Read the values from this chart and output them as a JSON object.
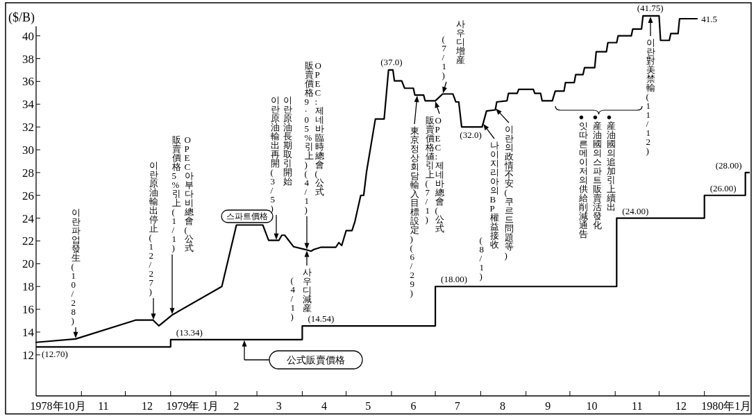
{
  "chart_data": {
    "type": "line",
    "ylabel": "($/B)",
    "xlim": [
      "1978-10-01",
      "1980-02-01"
    ],
    "xticks": [
      {
        "value": "1978-11-01",
        "label": null
      },
      {
        "value": "1978-12-01",
        "label": null
      },
      {
        "value": "1979-01-01",
        "label": null
      },
      {
        "value": "1979-02-01",
        "label": null
      },
      {
        "value": "1979-03-01",
        "label": null
      },
      {
        "value": "1979-04-01",
        "label": null
      },
      {
        "value": "1979-05-01",
        "label": null
      },
      {
        "value": "1979-06-01",
        "label": null
      },
      {
        "value": "1979-07-01",
        "label": null
      },
      {
        "value": "1979-08-01",
        "label": null
      },
      {
        "value": "1979-09-01",
        "label": null
      },
      {
        "value": "1979-10-01",
        "label": null
      },
      {
        "value": "1979-11-01",
        "label": null
      },
      {
        "value": "1979-12-01",
        "label": null
      },
      {
        "value": "1980-01-01",
        "label": null
      },
      {
        "value": "1978-10-16",
        "label": "1978年10月"
      },
      {
        "value": "1978-11-16",
        "label": "11"
      },
      {
        "value": "1978-12-16",
        "label": "12"
      },
      {
        "value": "1979-01-16",
        "label": "1979年 1月"
      },
      {
        "value": "1979-02-15",
        "label": "2"
      },
      {
        "value": "1979-03-16",
        "label": "3"
      },
      {
        "value": "1979-04-16",
        "label": "4"
      },
      {
        "value": "1979-05-16",
        "label": "5"
      },
      {
        "value": "1979-06-16",
        "label": "6"
      },
      {
        "value": "1979-07-16",
        "label": "7"
      },
      {
        "value": "1979-08-16",
        "label": "8"
      },
      {
        "value": "1979-09-16",
        "label": "9"
      },
      {
        "value": "1979-10-16",
        "label": "10"
      },
      {
        "value": "1979-11-16",
        "label": "11"
      },
      {
        "value": "1979-12-16",
        "label": "12"
      },
      {
        "value": "1980-01-16",
        "label": "1980年1月"
      }
    ],
    "ylim": [
      8.4,
      42.9
    ],
    "yticks": [
      12,
      14,
      16,
      18,
      20,
      22,
      24,
      26,
      28,
      30,
      32,
      34,
      36,
      38,
      40
    ],
    "series": [
      {
        "name": "스파트價格",
        "color": "#000000",
        "x": [
          "1978-10-01",
          "1978-10-28",
          "1978-12-08",
          "1978-12-20",
          "1978-12-24",
          "1979-01-02",
          "1979-02-05",
          "1979-02-15",
          "1979-03-05",
          "1979-03-09",
          "1979-03-16",
          "1979-03-18",
          "1979-03-20",
          "1979-03-26",
          "1979-04-03",
          "1979-04-07",
          "1979-04-09",
          "1979-04-14",
          "1979-04-24",
          "1979-04-26",
          "1979-04-28",
          "1979-05-01",
          "1979-05-05",
          "1979-05-07",
          "1979-05-11",
          "1979-05-13",
          "1979-05-15",
          "1979-05-21",
          "1979-05-27",
          "1979-05-30",
          "1979-06-02",
          "1979-06-03",
          "1979-06-08",
          "1979-06-10",
          "1979-06-16",
          "1979-06-17",
          "1979-06-23",
          "1979-06-24",
          "1979-07-01",
          "1979-07-06",
          "1979-07-13",
          "1979-07-15",
          "1979-07-17",
          "1979-07-19",
          "1979-08-02",
          "1979-08-05",
          "1979-08-11",
          "1979-08-12",
          "1979-08-19",
          "1979-08-20",
          "1979-08-26",
          "1979-08-27",
          "1979-09-06",
          "1979-09-07",
          "1979-09-11",
          "1979-09-12",
          "1979-09-19",
          "1979-09-21",
          "1979-09-27",
          "1979-09-28",
          "1979-10-04",
          "1979-10-05",
          "1979-10-10",
          "1979-10-11",
          "1979-10-18",
          "1979-10-19",
          "1979-10-26",
          "1979-10-27",
          "1979-11-02",
          "1979-11-03",
          "1979-11-12",
          "1979-11-13",
          "1979-11-19",
          "1979-11-20",
          "1979-12-01",
          "1979-12-02",
          "1979-12-08",
          "1979-12-09",
          "1979-12-14",
          "1979-12-15",
          "1979-12-27"
        ],
        "values": [
          13.1,
          13.4,
          15.05,
          15.05,
          14.55,
          15.5,
          18.0,
          23.4,
          23.4,
          22.05,
          22.05,
          22.5,
          22.5,
          21.5,
          21.25,
          21.1,
          21.25,
          21.45,
          21.45,
          21.85,
          21.6,
          22.9,
          22.9,
          23.7,
          26.0,
          26.0,
          28.1,
          32.7,
          32.7,
          37.0,
          37.0,
          36.05,
          36.05,
          35.4,
          35.4,
          34.8,
          34.8,
          34.3,
          34.3,
          34.9,
          34.9,
          34.2,
          34.2,
          32.0,
          32.0,
          33.4,
          33.5,
          34.2,
          34.3,
          34.95,
          34.95,
          35.3,
          35.3,
          34.95,
          34.95,
          34.3,
          34.3,
          35.15,
          35.15,
          35.9,
          35.9,
          36.6,
          36.6,
          37.2,
          37.2,
          38.6,
          38.6,
          39.4,
          39.4,
          40.0,
          40.0,
          40.6,
          40.6,
          41.75,
          41.75,
          39.6,
          39.6,
          40.2,
          40.2,
          41.5,
          41.5
        ]
      },
      {
        "name": "公式販賣價格",
        "type": "step",
        "color": "#000000",
        "x": [
          "1978-10-01",
          "1979-01-01",
          "1979-04-01",
          "1979-07-01",
          "1979-11-02",
          "1980-01-01",
          "1980-01-29",
          "1980-02-01"
        ],
        "values": [
          12.7,
          13.34,
          14.54,
          18.0,
          24.0,
          26.0,
          28.0,
          28.0
        ],
        "value_labels": [
          "(12.70)",
          "(13.34)",
          "(14.54)",
          "(18.00)",
          "(24.00)",
          "(26.00)",
          "(28.00)",
          null
        ]
      }
    ],
    "annotations": [
      "이란파업發生(10/28)",
      "이란原油輸出停止(12/27)",
      "OPEC아부다비總會(公式",
      "販賣價格5%引上(1/1)",
      "이란 原油長期取引開始",
      "이란 原油輸出再開(3/5)",
      "OPEC:제네바 臨時總會(公式",
      "販賣價格9·05%引上)(4/1)",
      "사우디減産",
      "(4/1)",
      "東京정상회담輸入目標設定)(6/29)",
      "OPEC:제네바總會(公式",
      "販賣價格値引上(7/1)",
      "사우디 增産",
      "(7/1)",
      "나이지리아의 BP權益接收",
      "(8/1)",
      "이란의 政情不安(쿠르드問題等)",
      "●産油國의 追加引上續出",
      "●産油國의 스파트販賣活發化",
      "●잇따른 메이저의 供給削減通告",
      "이란對美禁輸(11/12)",
      {
        "text": "(37.0)",
        "x": "1979-06-01",
        "y": 37.0
      },
      {
        "text": "(32.0)",
        "x": "1979-07-19",
        "y": 32.0
      },
      {
        "text": "(41.75)",
        "x": "1979-11-25",
        "y": 41.75
      },
      {
        "text": "41.5",
        "x": "1979-12-27",
        "y": 41.5
      }
    ]
  }
}
